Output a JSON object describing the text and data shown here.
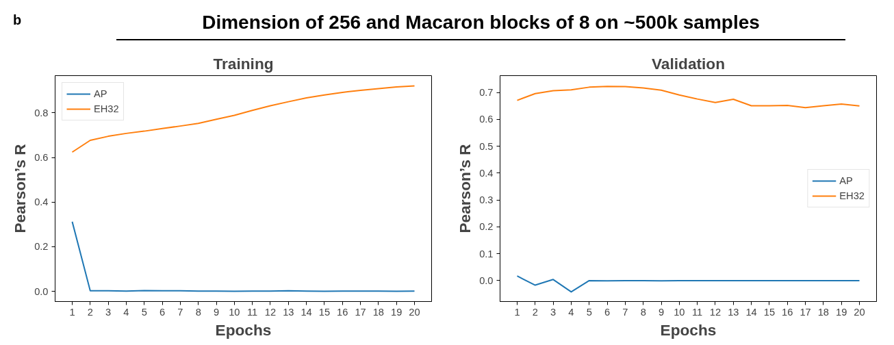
{
  "chart_data": [
    {
      "type": "line",
      "title": "Training",
      "xlabel": "Epochs",
      "ylabel": "Pearson’s R",
      "annotations": [
        "b",
        "Dimension of 256 and Macaron blocks of 8 on ~500k samples"
      ],
      "x": [
        1,
        2,
        3,
        4,
        5,
        6,
        7,
        8,
        9,
        10,
        11,
        12,
        13,
        14,
        15,
        16,
        17,
        18,
        19,
        20
      ],
      "series": [
        {
          "name": "AP",
          "color": "#1f77b4",
          "values": [
            0.312,
            0.002,
            0.002,
            0.001,
            0.003,
            0.002,
            0.002,
            0.001,
            0.001,
            0.0,
            0.001,
            0.001,
            0.002,
            0.001,
            0.0,
            0.001,
            0.001,
            0.001,
            0.0,
            0.001
          ]
        },
        {
          "name": "EH32",
          "color": "#ff7f0e",
          "values": [
            0.624,
            0.677,
            0.695,
            0.708,
            0.718,
            0.73,
            0.741,
            0.753,
            0.771,
            0.789,
            0.811,
            0.832,
            0.85,
            0.867,
            0.88,
            0.892,
            0.901,
            0.909,
            0.916,
            0.921
          ]
        }
      ],
      "xlim": [
        0.05,
        20.95
      ],
      "xticks": [
        1,
        2,
        3,
        4,
        5,
        6,
        7,
        8,
        9,
        10,
        11,
        12,
        13,
        14,
        15,
        16,
        17,
        18,
        19,
        20
      ],
      "ylim": [
        -0.046,
        0.967
      ],
      "yticks": [
        {
          "value": 0,
          "label": "0.0"
        },
        {
          "value": 0.2,
          "label": "0.2"
        },
        {
          "value": 0.4,
          "label": "0.4"
        },
        {
          "value": 0.6,
          "label": "0.6"
        },
        {
          "value": 0.8,
          "label": "0.8"
        }
      ],
      "legend": "top left",
      "grid": false
    },
    {
      "type": "line",
      "title": "Validation",
      "xlabel": "Epochs",
      "ylabel": "Pearson’s R",
      "x": [
        1,
        2,
        3,
        4,
        5,
        6,
        7,
        8,
        9,
        10,
        11,
        12,
        13,
        14,
        15,
        16,
        17,
        18,
        19,
        20
      ],
      "series": [
        {
          "name": "AP",
          "color": "#1f77b4",
          "values": [
            0.017,
            -0.017,
            0.004,
            -0.042,
            0.0,
            -0.001,
            0.0,
            0.0,
            -0.001,
            0.0,
            0.0,
            0.0,
            0.0,
            0.0,
            0.0,
            0.0,
            0.0,
            0.0,
            0.0,
            0.0
          ]
        },
        {
          "name": "EH32",
          "color": "#ff7f0e",
          "values": [
            0.671,
            0.696,
            0.707,
            0.71,
            0.72,
            0.723,
            0.722,
            0.717,
            0.709,
            0.691,
            0.676,
            0.663,
            0.675,
            0.651,
            0.651,
            0.652,
            0.644,
            0.651,
            0.657,
            0.65
          ]
        }
      ],
      "xlim": [
        0.05,
        20.95
      ],
      "xticks": [
        1,
        2,
        3,
        4,
        5,
        6,
        7,
        8,
        9,
        10,
        11,
        12,
        13,
        14,
        15,
        16,
        17,
        18,
        19,
        20
      ],
      "ylim": [
        -0.078,
        0.763
      ],
      "yticks": [
        {
          "value": 0,
          "label": "0.0"
        },
        {
          "value": 0.1,
          "label": "0.1"
        },
        {
          "value": 0.2,
          "label": "0.2"
        },
        {
          "value": 0.3,
          "label": "0.3"
        },
        {
          "value": 0.4,
          "label": "0.4"
        },
        {
          "value": 0.5,
          "label": "0.5"
        },
        {
          "value": 0.6,
          "label": "0.6"
        },
        {
          "value": 0.7,
          "label": "0.7"
        }
      ],
      "legend": "center right",
      "grid": false
    }
  ]
}
